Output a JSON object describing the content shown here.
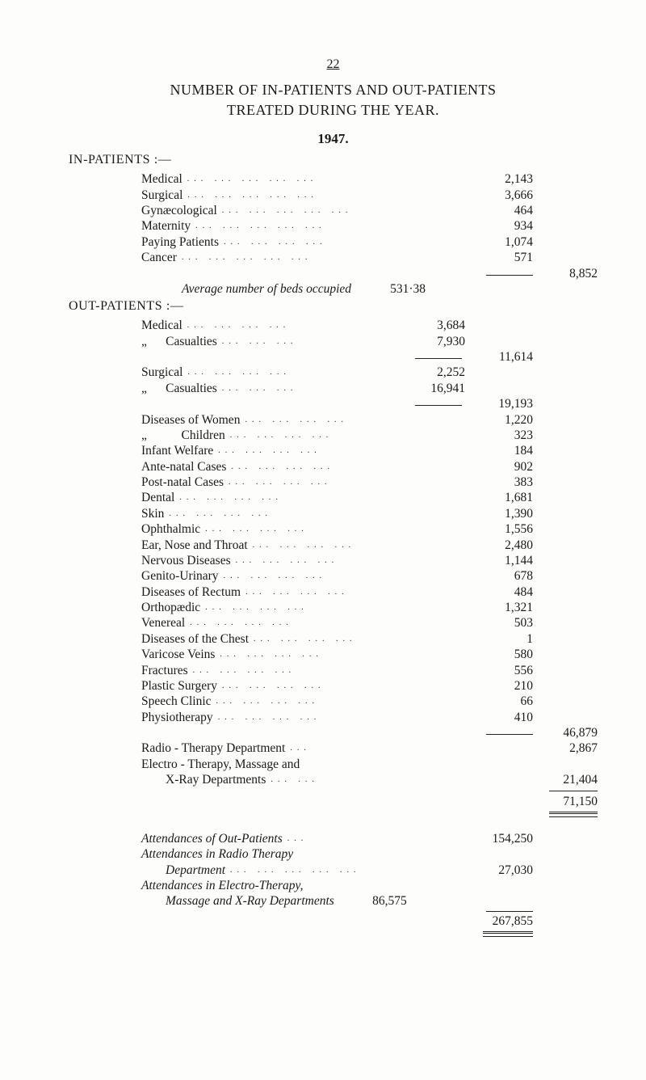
{
  "page_number": "22",
  "title_line1": "NUMBER OF IN-PATIENTS AND OUT-PATIENTS",
  "title_line2": "TREATED DURING THE YEAR.",
  "year": "1947.",
  "inpatients_head": "IN-PATIENTS :—",
  "inpatients": {
    "rows": [
      {
        "label": "Medical",
        "value": "2,143"
      },
      {
        "label": "Surgical",
        "value": "3,666"
      },
      {
        "label": "Gynæcological",
        "value": "464"
      },
      {
        "label": "Maternity",
        "value": "934"
      },
      {
        "label": "Paying Patients",
        "value": "1,074"
      },
      {
        "label": "Cancer",
        "value": "571"
      }
    ],
    "total": "8,852"
  },
  "avg_beds_label": "Average number of beds occupied",
  "avg_beds_value": "531·38",
  "outpatients_head": "OUT-PATIENTS :—",
  "out_medical": {
    "medical_label": "Medical",
    "medical_value": "3,684",
    "casualties_label": "„      Casualties",
    "casualties_value": "7,930",
    "subtotal": "11,614"
  },
  "out_surgical": {
    "surgical_label": "Surgical",
    "surgical_value": "2,252",
    "casualties_label": "„      Casualties",
    "casualties_value": "16,941",
    "subtotal": "19,193"
  },
  "diseases": [
    {
      "label": "Diseases of Women",
      "value": "1,220"
    },
    {
      "label": "„           Children",
      "value": "323"
    },
    {
      "label": "Infant Welfare",
      "value": "184"
    },
    {
      "label": "Ante-natal Cases",
      "value": "902"
    },
    {
      "label": "Post-natal Cases",
      "value": "383"
    },
    {
      "label": "Dental",
      "value": "1,681"
    },
    {
      "label": "Skin",
      "value": "1,390"
    },
    {
      "label": "Ophthalmic",
      "value": "1,556"
    },
    {
      "label": "Ear, Nose and Throat",
      "value": "2,480"
    },
    {
      "label": "Nervous Diseases",
      "value": "1,144"
    },
    {
      "label": "Genito-Urinary",
      "value": "678"
    },
    {
      "label": "Diseases of Rectum",
      "value": "484"
    },
    {
      "label": "Orthopædic",
      "value": "1,321"
    },
    {
      "label": "Venereal",
      "value": "503"
    },
    {
      "label": "Diseases of the Chest",
      "value": "1"
    },
    {
      "label": "Varicose Veins",
      "value": "580"
    },
    {
      "label": "Fractures",
      "value": "556"
    },
    {
      "label": "Plastic Surgery",
      "value": "210"
    },
    {
      "label": "Speech Clinic",
      "value": "66"
    },
    {
      "label": "Physiotherapy",
      "value": "410"
    }
  ],
  "diseases_total": "46,879",
  "radio_label": "Radio - Therapy   Department",
  "radio_value": "2,867",
  "electro_line1": "Electro - Therapy,   Massage   and",
  "electro_line2": "X-Ray  Departments",
  "electro_value": "21,404",
  "grand_total": "71,150",
  "attendances": {
    "out_label": "Attendances of Out-Patients",
    "out_value": "154,250",
    "radio_line1": "Attendances   in   Radio   Therapy",
    "radio_line2": "Department",
    "radio_value": "27,030",
    "electro_line1": "Attendances   in   Electro-Therapy,",
    "electro_line2": "Massage and X-Ray Departments",
    "electro_value": "86,575",
    "total": "267,855"
  },
  "dots5": "...   ...   ...   ...   ...",
  "dots4": "...   ...   ...   ...",
  "dots3": "...   ...   ...",
  "dots2": "...   ...",
  "dots1": "..."
}
